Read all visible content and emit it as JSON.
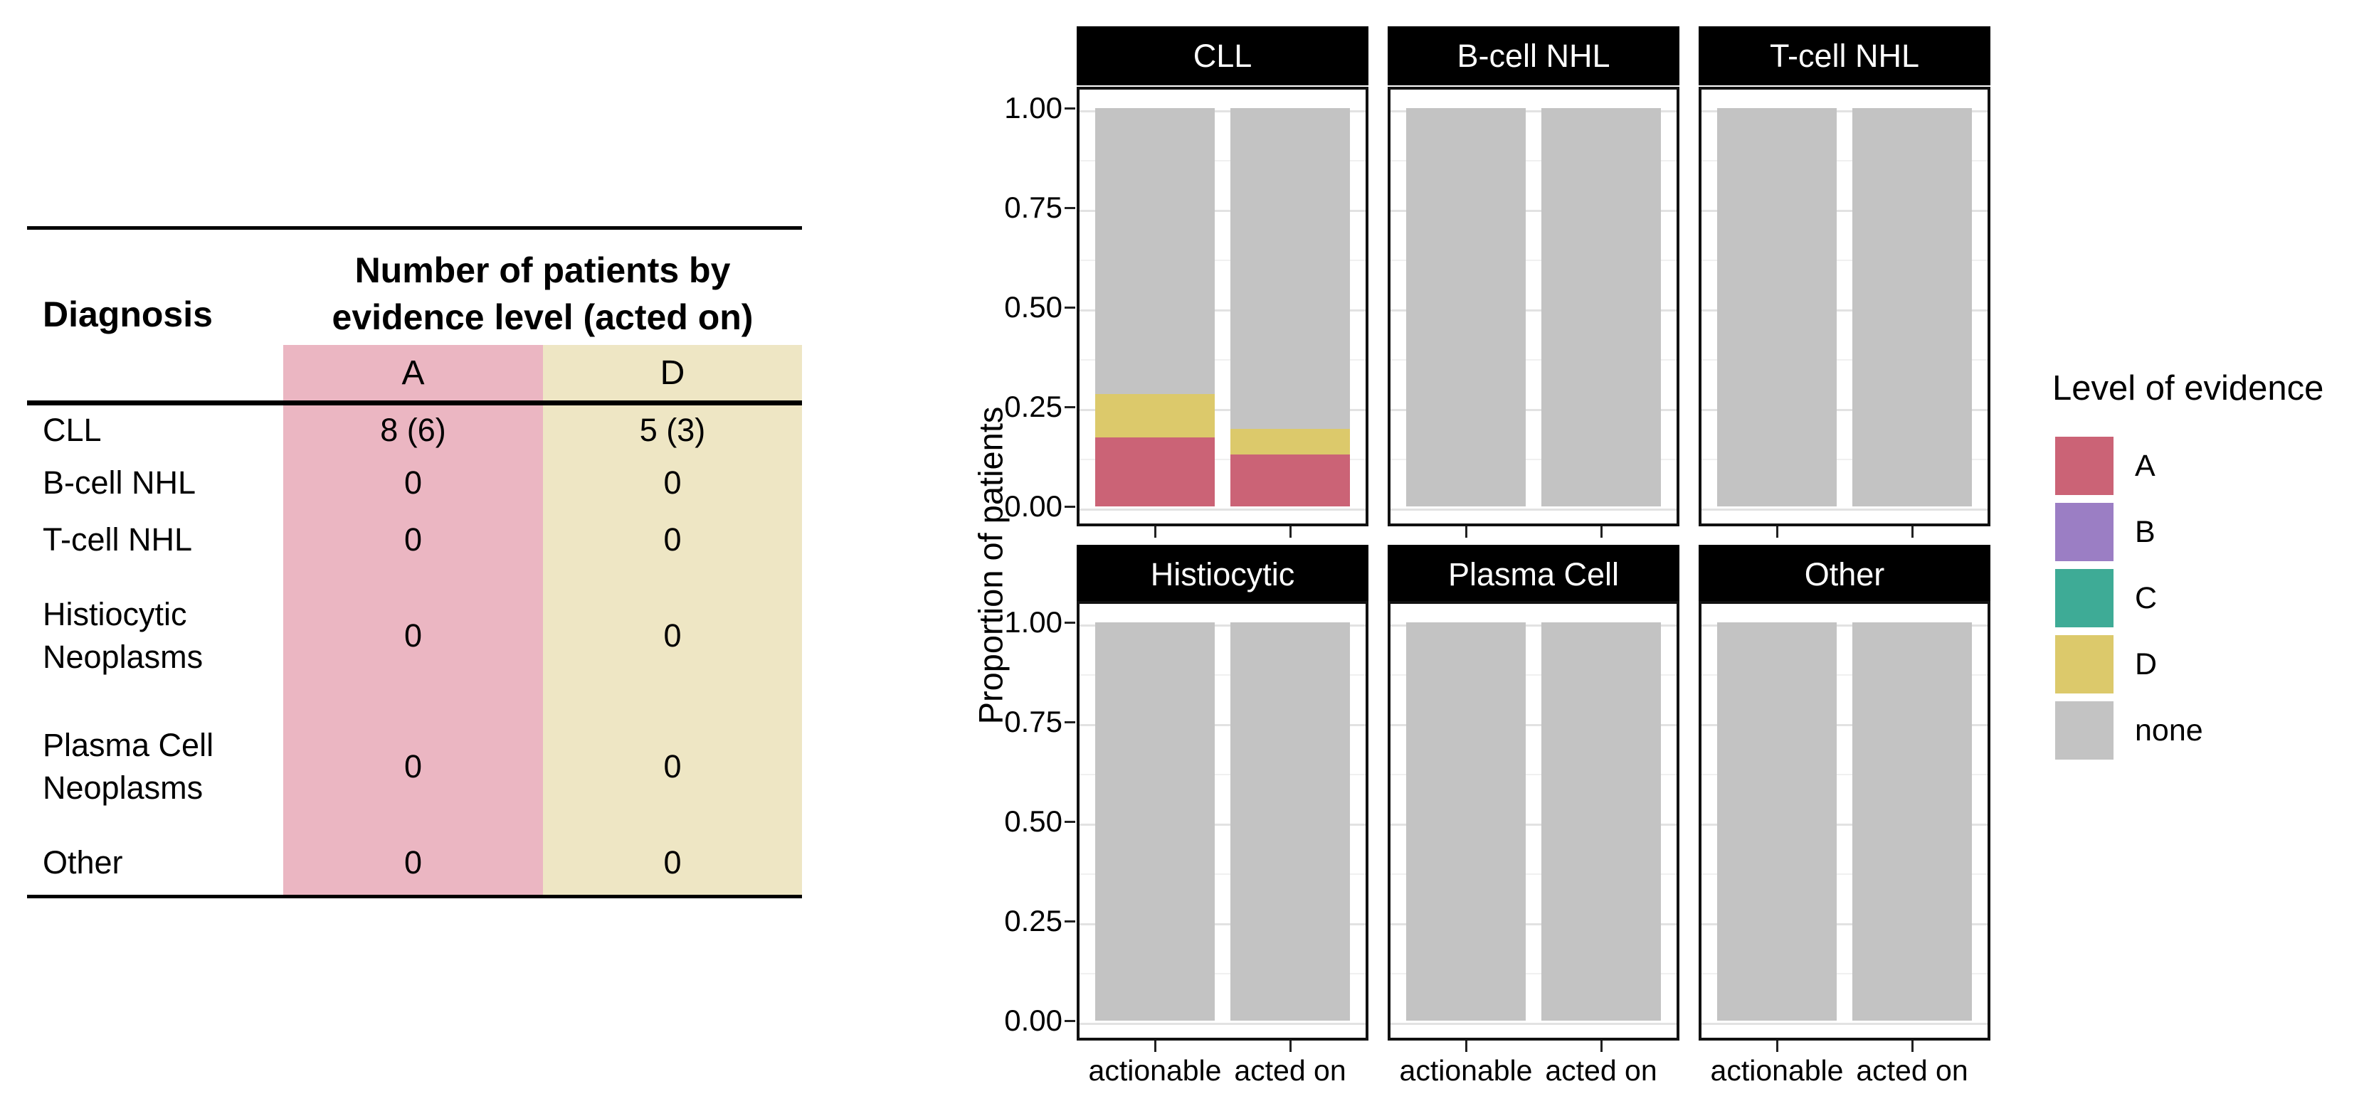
{
  "table": {
    "header": {
      "diagnosis": "Diagnosis",
      "group_line1": "Number of patients by",
      "group_line2": "evidence level (acted on)",
      "col_a": "A",
      "col_d": "D"
    },
    "rows": [
      {
        "diagnosis": "CLL",
        "a": "8 (6)",
        "d": "5 (3)"
      },
      {
        "diagnosis": "B-cell NHL",
        "a": "0",
        "d": "0"
      },
      {
        "diagnosis": "T-cell NHL",
        "a": "0",
        "d": "0"
      },
      {
        "diagnosis": "Histiocytic Neoplasms",
        "a": "0",
        "d": "0"
      },
      {
        "diagnosis": "Plasma Cell Neoplasms",
        "a": "0",
        "d": "0"
      },
      {
        "diagnosis": "Other",
        "a": "0",
        "d": "0"
      }
    ],
    "colors": {
      "col_a_bg": "#EBB6C2",
      "col_d_bg": "#EEE6C4"
    }
  },
  "chart_data": {
    "type": "bar",
    "stacked": true,
    "orientation": "vertical",
    "ylabel": "Proportion of patients",
    "ylim": [
      0,
      1
    ],
    "grid": {
      "major_step": 0.25,
      "minor_step": 0.125
    },
    "yticks": [
      {
        "label": "1.00",
        "value": 1.0
      },
      {
        "label": "0.75",
        "value": 0.75
      },
      {
        "label": "0.50",
        "value": 0.5
      },
      {
        "label": "0.25",
        "value": 0.25
      },
      {
        "label": "0.00",
        "value": 0.0
      }
    ],
    "categories": [
      "actionable",
      "acted on"
    ],
    "levels": [
      "A",
      "B",
      "C",
      "D",
      "none"
    ],
    "palette": {
      "A": "#CB6376",
      "B": "#9B7EC4",
      "C": "#3EAB96",
      "D": "#DCC96B",
      "none": "#C3C3C3"
    },
    "facets": [
      {
        "label": "CLL",
        "bars": [
          {
            "category": "actionable",
            "stack": [
              {
                "level": "A",
                "value": 0.174
              },
              {
                "level": "D",
                "value": 0.109
              },
              {
                "level": "none",
                "value": 0.717
              }
            ]
          },
          {
            "category": "acted on",
            "stack": [
              {
                "level": "A",
                "value": 0.13
              },
              {
                "level": "D",
                "value": 0.065
              },
              {
                "level": "none",
                "value": 0.805
              }
            ]
          }
        ]
      },
      {
        "label": "B-cell NHL",
        "bars": [
          {
            "category": "actionable",
            "stack": [
              {
                "level": "none",
                "value": 1.0
              }
            ]
          },
          {
            "category": "acted on",
            "stack": [
              {
                "level": "none",
                "value": 1.0
              }
            ]
          }
        ]
      },
      {
        "label": "T-cell NHL",
        "bars": [
          {
            "category": "actionable",
            "stack": [
              {
                "level": "none",
                "value": 1.0
              }
            ]
          },
          {
            "category": "acted on",
            "stack": [
              {
                "level": "none",
                "value": 1.0
              }
            ]
          }
        ]
      },
      {
        "label": "Histiocytic",
        "bars": [
          {
            "category": "actionable",
            "stack": [
              {
                "level": "none",
                "value": 1.0
              }
            ]
          },
          {
            "category": "acted on",
            "stack": [
              {
                "level": "none",
                "value": 1.0
              }
            ]
          }
        ]
      },
      {
        "label": "Plasma Cell",
        "bars": [
          {
            "category": "actionable",
            "stack": [
              {
                "level": "none",
                "value": 1.0
              }
            ]
          },
          {
            "category": "acted on",
            "stack": [
              {
                "level": "none",
                "value": 1.0
              }
            ]
          }
        ]
      },
      {
        "label": "Other",
        "bars": [
          {
            "category": "actionable",
            "stack": [
              {
                "level": "none",
                "value": 1.0
              }
            ]
          },
          {
            "category": "acted on",
            "stack": [
              {
                "level": "none",
                "value": 1.0
              }
            ]
          }
        ]
      }
    ],
    "legend": {
      "title": "Level of evidence",
      "position": "right",
      "entries": [
        "A",
        "B",
        "C",
        "D",
        "none"
      ]
    }
  }
}
